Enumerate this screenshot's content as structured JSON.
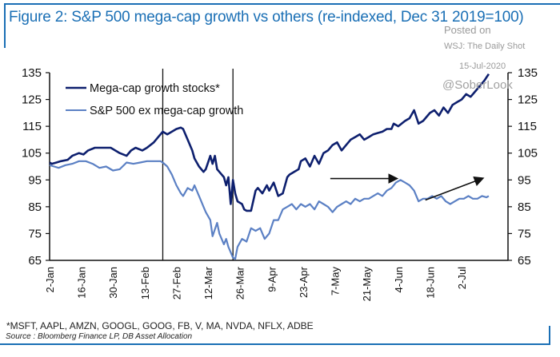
{
  "figure": {
    "title": "Figure 2: S&P 500 mega-cap growth vs others (re-indexed, Dec 31 2019=100)",
    "watermark": {
      "posted_on": "Posted on",
      "publisher": "WSJ: The Daily Shot",
      "date": "15-Jul-2020",
      "handle": "@SoberLook"
    },
    "footnote": "*MSFT, AAPL, AMZN, GOOGL, GOOG, FB, V, MA, NVDA, NFLX, ADBE",
    "source": "Source : Bloomberg Finance LP, DB Asset Allocation",
    "colors": {
      "frame": "#1a6fb5",
      "mega": "#0d1f6e",
      "ex": "#5b80c4"
    }
  },
  "chart_data": {
    "type": "line",
    "title": "Figure 2: S&P 500 mega-cap growth vs others (re-indexed, Dec 31 2019=100)",
    "xlabel": "",
    "ylabel": "",
    "ylim": [
      65,
      135
    ],
    "yticks": [
      135,
      125,
      115,
      105,
      95,
      85,
      75,
      65
    ],
    "xticks": [
      "2-Jan",
      "16-Jan",
      "30-Jan",
      "13-Feb",
      "27-Feb",
      "12-Mar",
      "26-Mar",
      "9-Apr",
      "23-Apr",
      "7-May",
      "21-May",
      "4-Jun",
      "18-Jun",
      "2-Jul"
    ],
    "xticks_day": [
      0,
      14,
      28,
      42,
      56,
      70,
      84,
      98,
      112,
      126,
      140,
      154,
      168,
      182
    ],
    "xlim_day": [
      0,
      196
    ],
    "dual_axis": true,
    "legend": "top-left",
    "grid": false,
    "vlines_day": [
      50,
      81
    ],
    "annotations": [
      {
        "type": "arrow",
        "from": [
          166,
          87.5
        ],
        "to": [
          191,
          95.5
        ],
        "label": ""
      },
      {
        "type": "arrow",
        "from": [
          124,
          95.5
        ],
        "to": [
          153,
          95.5
        ],
        "label": ""
      }
    ],
    "series": [
      {
        "name": "Mega-cap growth stocks*",
        "day": [
          0,
          1,
          3,
          5,
          8,
          10,
          13,
          15,
          17,
          20,
          22,
          24,
          27,
          31,
          34,
          36,
          38,
          41,
          43,
          46,
          48,
          50,
          52,
          54,
          56,
          58,
          59,
          61,
          63,
          64,
          66,
          68,
          69,
          71,
          72,
          73,
          74,
          75,
          77,
          78,
          79,
          80,
          81,
          82,
          83,
          85,
          86,
          87,
          89,
          91,
          92,
          94,
          96,
          97,
          99,
          101,
          103,
          105,
          106,
          108,
          110,
          111,
          113,
          115,
          117,
          119,
          121,
          123,
          125,
          127,
          129,
          131,
          133,
          135,
          137,
          139,
          141,
          143,
          145,
          147,
          149,
          151,
          152,
          154,
          157,
          159,
          161,
          163,
          165,
          166,
          168,
          170,
          172,
          174,
          176,
          178,
          180,
          182,
          184,
          186,
          188,
          190,
          192,
          194
        ],
        "values": [
          101.5,
          101,
          101.5,
          102,
          102.5,
          104,
          105,
          104.5,
          106,
          107,
          107,
          107,
          107,
          105,
          104,
          106,
          107,
          106,
          107,
          109,
          111,
          113,
          112,
          113,
          114,
          114.5,
          114,
          110,
          106,
          103,
          100,
          98,
          99,
          104,
          101,
          104,
          99,
          98,
          96,
          93,
          96,
          86,
          95,
          90,
          87,
          86,
          84,
          83.5,
          83.5,
          91,
          92,
          90,
          93,
          91,
          94,
          89,
          90,
          96,
          97,
          98,
          99,
          102,
          103,
          100,
          104,
          101,
          105,
          106,
          108,
          109,
          106,
          108,
          110,
          111,
          112,
          110,
          111,
          112,
          112.5,
          113,
          114,
          114,
          116,
          115,
          117,
          118,
          121,
          116,
          117,
          118,
          120,
          121,
          119,
          122,
          120,
          123,
          124,
          125,
          127,
          126,
          128,
          130,
          132,
          134.5
        ]
      },
      {
        "name": "S&P 500 ex mega-cap growth",
        "day": [
          0,
          2,
          4,
          7,
          10,
          13,
          16,
          19,
          22,
          25,
          28,
          31,
          34,
          37,
          40,
          43,
          46,
          49,
          50,
          52,
          54,
          56,
          58,
          59,
          61,
          63,
          64,
          66,
          68,
          69,
          71,
          72,
          74,
          75,
          77,
          78,
          79,
          80,
          81,
          82,
          83,
          85,
          87,
          89,
          91,
          93,
          95,
          97,
          99,
          101,
          103,
          105,
          107,
          109,
          111,
          113,
          115,
          117,
          119,
          121,
          123,
          125,
          127,
          129,
          131,
          133,
          135,
          137,
          139,
          141,
          143,
          145,
          147,
          149,
          151,
          153,
          155,
          157,
          159,
          161,
          163,
          165,
          167,
          169,
          171,
          173,
          175,
          177,
          179,
          181,
          183,
          185,
          187,
          189,
          191,
          193,
          194
        ],
        "values": [
          100.5,
          100,
          99.5,
          100.5,
          101,
          102,
          102,
          101,
          99.5,
          100,
          98.5,
          99,
          101.5,
          101,
          101.5,
          102,
          102,
          102,
          101.5,
          100,
          97,
          93,
          90,
          89,
          92,
          91,
          93,
          89,
          85,
          83,
          80,
          74,
          79,
          75,
          71,
          73,
          70,
          68,
          66,
          65.5,
          70,
          73,
          72,
          77,
          76,
          77,
          73,
          75,
          80,
          80,
          84,
          85,
          86,
          84,
          86,
          85,
          86,
          84,
          87,
          86,
          85,
          83,
          85,
          86,
          87,
          86,
          88,
          87,
          88,
          88,
          89,
          90,
          89,
          91,
          92,
          94,
          95,
          94,
          93,
          91,
          87,
          88,
          88,
          89,
          88,
          89,
          87,
          86,
          87,
          88,
          88,
          89,
          88,
          88,
          89,
          88.5,
          89
        ]
      }
    ]
  }
}
